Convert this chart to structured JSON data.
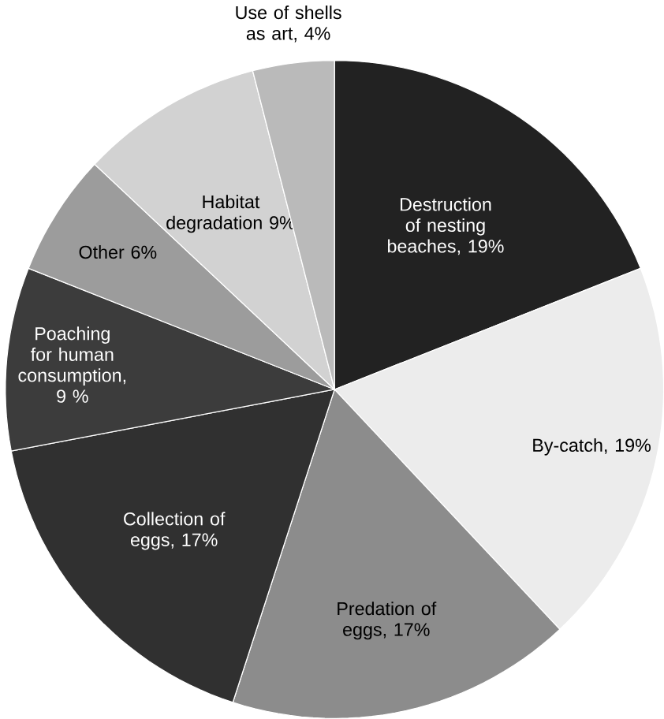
{
  "chart_data": {
    "type": "pie",
    "categories": [
      "Destruction of nesting beaches, 19%",
      "By-catch, 19%",
      "Predation of eggs, 17%",
      "Collection of eggs, 17%",
      "Poaching for human consumption, 9 %",
      "Other 6%",
      "Habitat degradation 9%",
      "Use of shells as art, 4%"
    ],
    "values": [
      19,
      19,
      17,
      17,
      9,
      6,
      9,
      4
    ],
    "colors": [
      "#222222",
      "#ececec",
      "#8c8c8c",
      "#303030",
      "#3c3c3c",
      "#9c9c9c",
      "#d2d2d2",
      "#bababa"
    ]
  }
}
